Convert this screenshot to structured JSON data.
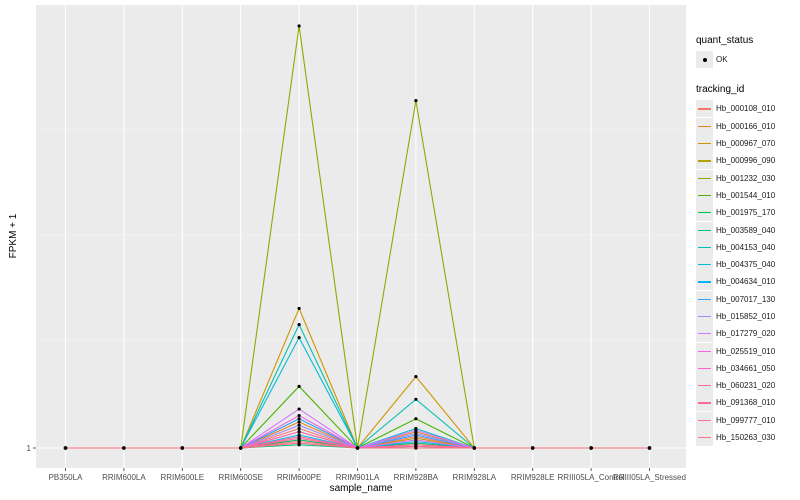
{
  "chart_data": {
    "type": "line",
    "xlabel": "sample_name",
    "ylabel": "FPKM + 1",
    "y_tick_labels": [
      "1"
    ],
    "ylim": [
      1,
      14.5
    ],
    "grid": true,
    "legend_placement": "right",
    "categories": [
      "PB350LA",
      "RRIM600LA",
      "RRIM600LE",
      "RRIM600SE",
      "RRIM600PE",
      "RRIM901LA",
      "RRIM928BA",
      "RRIM928LA",
      "RRIM928LE",
      "RRIII05LA_Control",
      "RRIII05LA_Stressed"
    ],
    "quant_status": {
      "title": "quant_status",
      "entries": [
        "OK"
      ]
    },
    "tracking_title": "tracking_id",
    "series": [
      {
        "name": "Hb_000108_010",
        "color": "#F8766D",
        "values": [
          1,
          1,
          1,
          1,
          1.6,
          1,
          1.35,
          1,
          1,
          1,
          1
        ]
      },
      {
        "name": "Hb_000166_010",
        "color": "#E7851E",
        "values": [
          1,
          1,
          1,
          1,
          1.8,
          1,
          1.5,
          1,
          1,
          1,
          1
        ]
      },
      {
        "name": "Hb_000967_070",
        "color": "#D09400",
        "values": [
          1,
          1,
          1,
          1,
          5.3,
          1,
          3.2,
          1,
          1,
          1,
          1
        ]
      },
      {
        "name": "Hb_000996_090",
        "color": "#B2A100",
        "values": [
          1,
          1,
          1,
          1,
          1.5,
          1,
          1.3,
          1,
          1,
          1,
          1
        ]
      },
      {
        "name": "Hb_001232_030",
        "color": "#89AC00",
        "values": [
          1,
          1,
          1,
          1,
          14.0,
          1,
          11.7,
          1,
          1,
          1,
          1
        ]
      },
      {
        "name": "Hb_001544_010",
        "color": "#45B500",
        "values": [
          1,
          1,
          1,
          1,
          2.9,
          1,
          1.9,
          1,
          1,
          1,
          1
        ]
      },
      {
        "name": "Hb_001975_170",
        "color": "#00BC51",
        "values": [
          1,
          1,
          1,
          1,
          1.25,
          1,
          1.15,
          1,
          1,
          1,
          1
        ]
      },
      {
        "name": "Hb_003589_040",
        "color": "#00C087",
        "values": [
          1,
          1,
          1,
          1,
          1.1,
          1,
          1.05,
          1,
          1,
          1,
          1
        ]
      },
      {
        "name": "Hb_004153_040",
        "color": "#00C0B2",
        "values": [
          1,
          1,
          1,
          1,
          4.8,
          1,
          2.5,
          1,
          1,
          1,
          1
        ]
      },
      {
        "name": "Hb_004375_040",
        "color": "#00BCD6",
        "values": [
          1,
          1,
          1,
          1,
          4.4,
          1,
          1.6,
          1,
          1,
          1,
          1
        ]
      },
      {
        "name": "Hb_004634_010",
        "color": "#00B3F2",
        "values": [
          1,
          1,
          1,
          1,
          1.4,
          1,
          1.2,
          1,
          1,
          1,
          1
        ]
      },
      {
        "name": "Hb_007017_130",
        "color": "#29A3FF",
        "values": [
          1,
          1,
          1,
          1,
          1.9,
          1,
          1.4,
          1,
          1,
          1,
          1
        ]
      },
      {
        "name": "Hb_015852_010",
        "color": "#9C8DFF",
        "values": [
          1,
          1,
          1,
          1,
          1.7,
          1,
          1.45,
          1,
          1,
          1,
          1
        ]
      },
      {
        "name": "Hb_017279_020",
        "color": "#D277FF",
        "values": [
          1,
          1,
          1,
          1,
          2.2,
          1,
          1.55,
          1,
          1,
          1,
          1
        ]
      },
      {
        "name": "Hb_025519_010",
        "color": "#F166E8",
        "values": [
          1,
          1,
          1,
          1,
          2.0,
          1,
          1.25,
          1,
          1,
          1,
          1
        ]
      },
      {
        "name": "Hb_034661_050",
        "color": "#FF61C7",
        "values": [
          1,
          1,
          1,
          1,
          1.5,
          1,
          1.1,
          1,
          1,
          1,
          1
        ]
      },
      {
        "name": "Hb_060231_020",
        "color": "#FF689E",
        "values": [
          1,
          1,
          1,
          1,
          1.3,
          1,
          1.0,
          1,
          1,
          1,
          1
        ]
      },
      {
        "name": "Hb_091368_010",
        "color": "#FF6C91",
        "values": [
          1,
          1,
          1,
          1,
          1.2,
          1,
          1.05,
          1,
          1,
          1,
          1
        ]
      },
      {
        "name": "Hb_099777_010",
        "color": "#FF6A98",
        "values": [
          1,
          1,
          1,
          1,
          1.35,
          1,
          1.1,
          1,
          1,
          1,
          1
        ]
      },
      {
        "name": "Hb_150263_030",
        "color": "#FC717F",
        "values": [
          1,
          1,
          1,
          1,
          1.15,
          1,
          1.0,
          1,
          1,
          1,
          1
        ]
      }
    ]
  }
}
